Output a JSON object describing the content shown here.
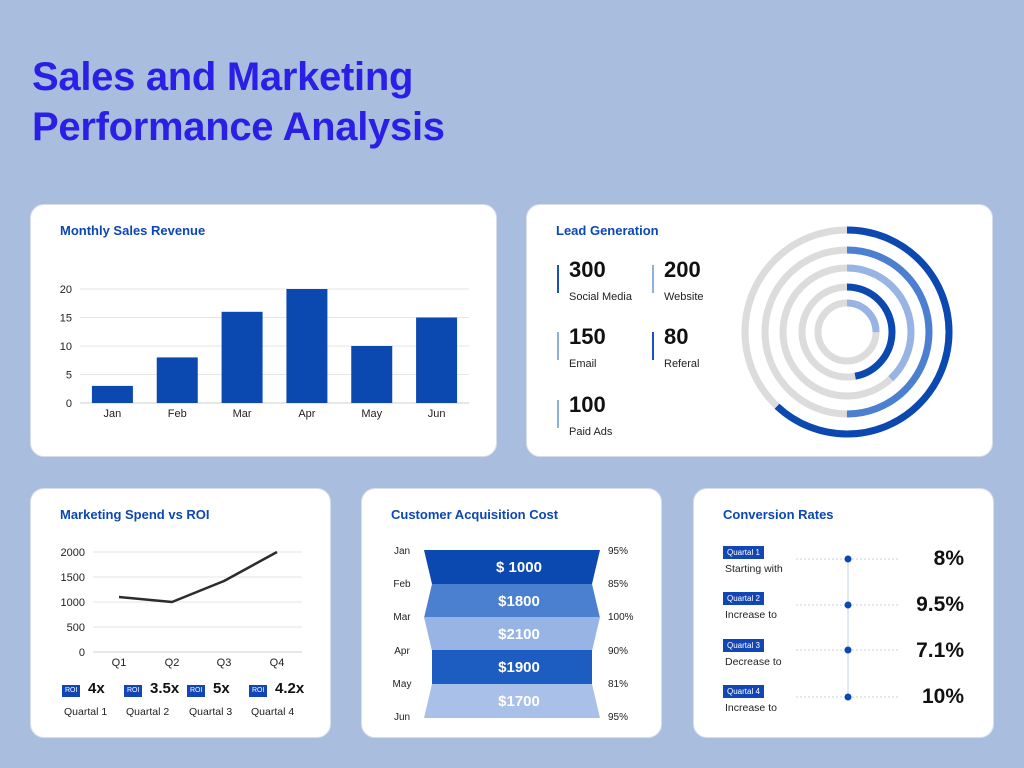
{
  "page": {
    "title_line1": "Sales and Marketing",
    "title_line2": "Performance Analysis"
  },
  "colors": {
    "title": "#2b1fe6",
    "primary": "#0b49b0",
    "mid": "#4b80d1",
    "light": "#97b4e4",
    "track": "#dcdcdc"
  },
  "monthly_sales": {
    "title": "Monthly Sales Revenue",
    "chart_data": {
      "type": "bar",
      "categories": [
        "Jan",
        "Feb",
        "Mar",
        "Apr",
        "May",
        "Jun"
      ],
      "values": [
        3,
        8,
        16,
        20,
        10,
        15
      ],
      "yticks": [
        "0",
        "5",
        "10",
        "15",
        "20"
      ],
      "ylim": [
        0,
        20
      ]
    }
  },
  "lead_generation": {
    "title": "Lead Generation",
    "items": [
      {
        "value": "300",
        "label": "Social Media"
      },
      {
        "value": "200",
        "label": "Website"
      },
      {
        "value": "150",
        "label": "Email"
      },
      {
        "value": "80",
        "label": "Referal"
      },
      {
        "value": "100",
        "label": "Paid Ads"
      }
    ],
    "chart_data": {
      "type": "radial-bar",
      "rings": [
        {
          "label": "Social Media",
          "value": 300,
          "fraction": 0.62,
          "color": "#0b49b0"
        },
        {
          "label": "Website",
          "value": 200,
          "fraction": 0.5,
          "color": "#4b80d1"
        },
        {
          "label": "Email",
          "value": 150,
          "fraction": 0.38,
          "color": "#97b4e4"
        },
        {
          "label": "Referal",
          "value": 80,
          "fraction": 0.47,
          "color": "#0b49b0"
        },
        {
          "label": "Paid Ads",
          "value": 100,
          "fraction": 0.25,
          "color": "#97b4e4"
        }
      ]
    }
  },
  "marketing_roi": {
    "title": "Marketing Spend vs ROI",
    "chart_data": {
      "type": "line",
      "categories": [
        "Q1",
        "Q2",
        "Q3",
        "Q4"
      ],
      "values": [
        1100,
        1000,
        1420,
        2000
      ],
      "yticks": [
        "0",
        "500",
        "1000",
        "1500",
        "2000"
      ],
      "ylim": [
        0,
        2000
      ]
    },
    "roi": [
      {
        "badge": "ROI",
        "value": "4x",
        "label": "Quartal 1"
      },
      {
        "badge": "ROI",
        "value": "3.5x",
        "label": "Quartal 2"
      },
      {
        "badge": "ROI",
        "value": "5x",
        "label": "Quartal 3"
      },
      {
        "badge": "ROI",
        "value": "4.2x",
        "label": "Quartal 4"
      }
    ]
  },
  "acquisition_cost": {
    "title": "Customer Acquisition Cost",
    "months": [
      "Jan",
      "Feb",
      "Mar",
      "Apr",
      "May",
      "Jun"
    ],
    "percents": [
      "95%",
      "85%",
      "100%",
      "90%",
      "81%",
      "95%"
    ],
    "chart_data": {
      "type": "funnel",
      "values": [
        "$ 1000",
        "$1800",
        "$2100",
        "$1900",
        "$1700"
      ],
      "colors": [
        "#0b49b0",
        "#4b80d1",
        "#97b4e4",
        "#1d5cc0",
        "#a9c0e9"
      ]
    }
  },
  "conversion_rates": {
    "title": "Conversion Rates",
    "items": [
      {
        "badge": "Quartal 1",
        "desc": "Starting with",
        "rate": "8%"
      },
      {
        "badge": "Quartal 2",
        "desc": "Increase to",
        "rate": "9.5%"
      },
      {
        "badge": "Quartal 3",
        "desc": "Decrease to",
        "rate": "7.1%"
      },
      {
        "badge": "Quartal 4",
        "desc": "Increase to",
        "rate": "10%"
      }
    ]
  }
}
